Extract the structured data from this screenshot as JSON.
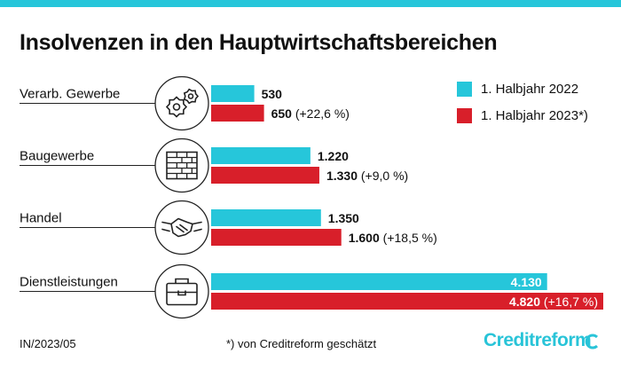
{
  "title": "Insolvenzen in den Hauptwirtschaftsbereichen",
  "colors": {
    "accent": "#26c6da",
    "primary": "#d81f2a"
  },
  "legend": [
    {
      "label": "1. Halbjahr 2022",
      "color": "#26c6da"
    },
    {
      "label": "1. Halbjahr 2023*)",
      "color": "#d81f2a"
    }
  ],
  "footer": {
    "code": "IN/2023/05",
    "note": "*) von Creditreform geschätzt",
    "logo": "Creditreform"
  },
  "chart_data": {
    "type": "bar",
    "title": "Insolvenzen in den Hauptwirtschaftsbereichen",
    "orientation": "horizontal",
    "categories": [
      "Verarb. Gewerbe",
      "Baugewerbe",
      "Handel",
      "Dienstleistungen"
    ],
    "icons": [
      "gears-icon",
      "brick-wall-icon",
      "handshake-icon",
      "briefcase-icon"
    ],
    "series": [
      {
        "name": "1. Halbjahr 2022",
        "color": "#26c6da",
        "values": [
          530,
          1220,
          1350,
          4130
        ],
        "labels": [
          "530",
          "1.220",
          "1.350",
          "4.130"
        ]
      },
      {
        "name": "1. Halbjahr 2023*)",
        "color": "#d81f2a",
        "values": [
          650,
          1330,
          1600,
          4820
        ],
        "labels": [
          "650",
          "1.330",
          "1.600",
          "4.820"
        ],
        "changes": [
          "(+22,6 %)",
          "(+9,0 %)",
          "(+18,5 %)",
          "(+16,7 %)"
        ]
      }
    ],
    "xlim": [
      0,
      4820
    ],
    "grid": false,
    "legend_position": "top-right"
  }
}
